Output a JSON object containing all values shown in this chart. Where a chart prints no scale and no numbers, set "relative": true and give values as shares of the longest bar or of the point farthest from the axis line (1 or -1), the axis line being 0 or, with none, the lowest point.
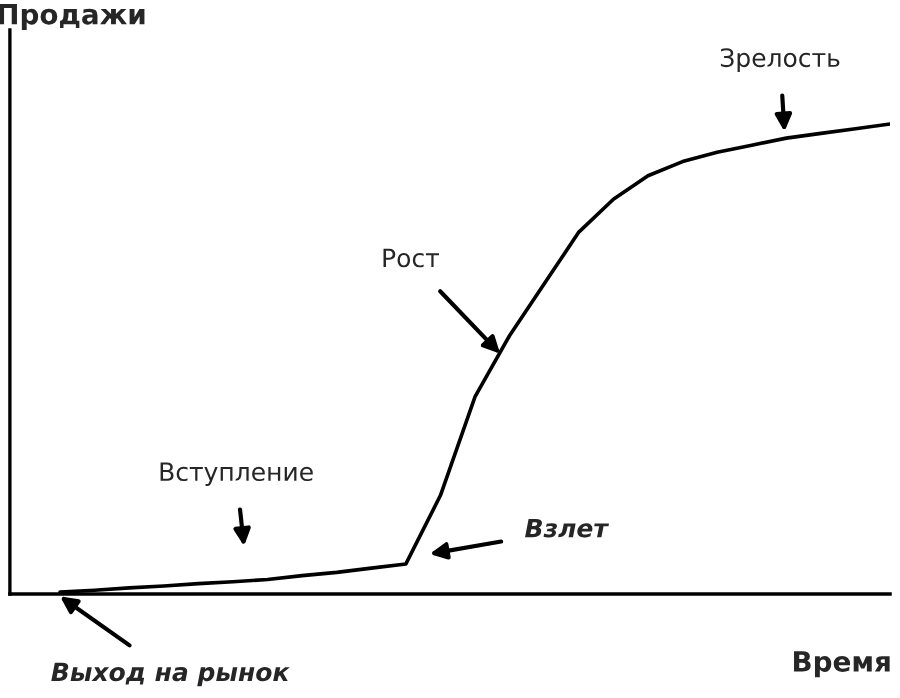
{
  "chart_data": {
    "type": "line",
    "relative": true,
    "xlabel": "Время",
    "ylabel": "Продажи",
    "color": "#000000",
    "categories": [
      null,
      null,
      null,
      null,
      null,
      null,
      null,
      null,
      null,
      null,
      null,
      null,
      null,
      null,
      null,
      null,
      null,
      null,
      null,
      null,
      null,
      null,
      null,
      null,
      null
    ],
    "values": [
      0.004,
      0.008,
      0.013,
      0.017,
      0.022,
      0.026,
      0.031,
      0.039,
      0.046,
      0.055,
      0.064,
      0.21,
      0.42,
      0.55,
      0.66,
      0.77,
      0.84,
      0.89,
      0.92,
      0.94,
      0.955,
      0.97,
      0.98,
      0.99,
      1.0
    ],
    "annotations": [
      "Зрелость",
      "Рост",
      "Вступление",
      "Взлет",
      "Выход на рынок"
    ]
  }
}
